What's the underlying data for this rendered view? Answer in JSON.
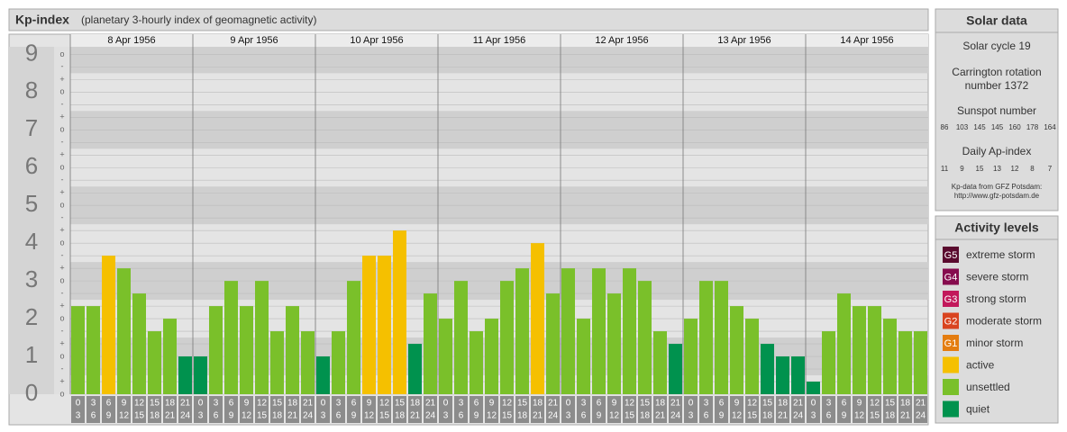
{
  "chart_data": {
    "type": "bar",
    "title": "Kp-index",
    "subtitle": "(planetary 3-hourly index of geomagnetic activity)",
    "ylim": [
      0,
      9.2
    ],
    "yticks": [
      0,
      1,
      2,
      3,
      4,
      5,
      6,
      7,
      8,
      9
    ],
    "ysubticks": [
      {
        "value": 0,
        "label": "o"
      },
      {
        "value": 0.333,
        "label": "+"
      },
      {
        "value": 0.667,
        "label": "-"
      },
      {
        "value": 1,
        "label": "o"
      },
      {
        "value": 1.333,
        "label": "+"
      },
      {
        "value": 1.667,
        "label": "-"
      },
      {
        "value": 2,
        "label": "o"
      },
      {
        "value": 2.333,
        "label": "+"
      },
      {
        "value": 2.667,
        "label": "-"
      },
      {
        "value": 3,
        "label": "o"
      },
      {
        "value": 3.333,
        "label": "+"
      },
      {
        "value": 3.667,
        "label": "-"
      },
      {
        "value": 4,
        "label": "o"
      },
      {
        "value": 4.333,
        "label": "+"
      },
      {
        "value": 4.667,
        "label": "-"
      },
      {
        "value": 5,
        "label": "o"
      },
      {
        "value": 5.333,
        "label": "+"
      },
      {
        "value": 5.667,
        "label": "-"
      },
      {
        "value": 6,
        "label": "o"
      },
      {
        "value": 6.333,
        "label": "+"
      },
      {
        "value": 6.667,
        "label": "-"
      },
      {
        "value": 7,
        "label": "o"
      },
      {
        "value": 7.333,
        "label": "+"
      },
      {
        "value": 7.667,
        "label": "-"
      },
      {
        "value": 8,
        "label": "o"
      },
      {
        "value": 8.333,
        "label": "+"
      },
      {
        "value": 8.667,
        "label": "-"
      },
      {
        "value": 9,
        "label": "o"
      }
    ],
    "grid": true,
    "intervals": [
      [
        "0",
        "3"
      ],
      [
        "3",
        "6"
      ],
      [
        "6",
        "9"
      ],
      [
        "9",
        "12"
      ],
      [
        "12",
        "15"
      ],
      [
        "15",
        "18"
      ],
      [
        "18",
        "21"
      ],
      [
        "21",
        "24"
      ]
    ],
    "days": [
      {
        "date": "8 Apr 1956",
        "values": [
          2.333,
          2.333,
          3.667,
          3.333,
          2.667,
          1.667,
          2,
          1
        ],
        "colors": [
          "#7ac02a",
          "#7ac02a",
          "#f5c000",
          "#7ac02a",
          "#7ac02a",
          "#7ac02a",
          "#7ac02a",
          "#00924e"
        ]
      },
      {
        "date": "9 Apr 1956",
        "values": [
          1,
          2.333,
          3,
          2.333,
          3,
          1.667,
          2.333,
          1.667
        ],
        "colors": [
          "#00924e",
          "#7ac02a",
          "#7ac02a",
          "#7ac02a",
          "#7ac02a",
          "#7ac02a",
          "#7ac02a",
          "#7ac02a"
        ]
      },
      {
        "date": "10 Apr 1956",
        "values": [
          1,
          1.667,
          3,
          3.667,
          3.667,
          4.333,
          1.333,
          2.667
        ],
        "colors": [
          "#00924e",
          "#7ac02a",
          "#7ac02a",
          "#f5c000",
          "#f5c000",
          "#f5c000",
          "#00924e",
          "#7ac02a"
        ]
      },
      {
        "date": "11 Apr 1956",
        "values": [
          2,
          3,
          1.667,
          2,
          3,
          3.333,
          4,
          2.667
        ],
        "colors": [
          "#7ac02a",
          "#7ac02a",
          "#7ac02a",
          "#7ac02a",
          "#7ac02a",
          "#7ac02a",
          "#f5c000",
          "#7ac02a"
        ]
      },
      {
        "date": "12 Apr 1956",
        "values": [
          3.333,
          2,
          3.333,
          2.667,
          3.333,
          3,
          1.667,
          1.333
        ],
        "colors": [
          "#7ac02a",
          "#7ac02a",
          "#7ac02a",
          "#7ac02a",
          "#7ac02a",
          "#7ac02a",
          "#7ac02a",
          "#00924e"
        ]
      },
      {
        "date": "13 Apr 1956",
        "values": [
          2,
          3,
          3,
          2.333,
          2,
          1.333,
          1,
          1
        ],
        "colors": [
          "#7ac02a",
          "#7ac02a",
          "#7ac02a",
          "#7ac02a",
          "#7ac02a",
          "#00924e",
          "#00924e",
          "#00924e"
        ]
      },
      {
        "date": "14 Apr 1956",
        "values": [
          0.333,
          1.667,
          2.667,
          2.333,
          2.333,
          2,
          1.667,
          1.667
        ],
        "colors": [
          "#00924e",
          "#7ac02a",
          "#7ac02a",
          "#7ac02a",
          "#7ac02a",
          "#7ac02a",
          "#7ac02a",
          "#7ac02a"
        ]
      }
    ],
    "solar": {
      "heading": "Solar data",
      "cycle": "Solar cycle 19",
      "carrington_1": "Carrington rotation",
      "carrington_2": "number 1372",
      "sunspot_heading": "Sunspot number",
      "sunspots": [
        86,
        103,
        145,
        145,
        160,
        178,
        164
      ],
      "ap_heading": "Daily Ap-index",
      "ap": [
        11,
        9,
        15,
        13,
        12,
        8,
        7
      ],
      "source_1": "Kp-data from GFZ Potsdam:",
      "source_2": "http://www.gfz-potsdam.de"
    },
    "legend": {
      "heading": "Activity levels",
      "levels": [
        {
          "badge": "G5",
          "name": "extreme storm",
          "color": "#5a0a2e"
        },
        {
          "badge": "G4",
          "name": "severe storm",
          "color": "#860c4e"
        },
        {
          "badge": "G3",
          "name": "strong storm",
          "color": "#c2185b"
        },
        {
          "badge": "G2",
          "name": "moderate storm",
          "color": "#d9441f"
        },
        {
          "badge": "G1",
          "name": "minor storm",
          "color": "#e47d10"
        },
        {
          "name": "active",
          "color": "#f5c000"
        },
        {
          "name": "unsettled",
          "color": "#7ac02a"
        },
        {
          "name": "quiet",
          "color": "#00924e"
        }
      ]
    }
  }
}
